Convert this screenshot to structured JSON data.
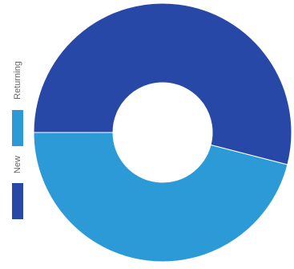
{
  "chart_data": {
    "type": "pie",
    "donut": true,
    "title": "",
    "series": [
      {
        "name": "Returning",
        "value": 46,
        "color": "#2b9ad6"
      },
      {
        "name": "New",
        "value": 54,
        "color": "#2848a8"
      }
    ],
    "legend_placement": "left",
    "legend_orientation": "vertical"
  }
}
